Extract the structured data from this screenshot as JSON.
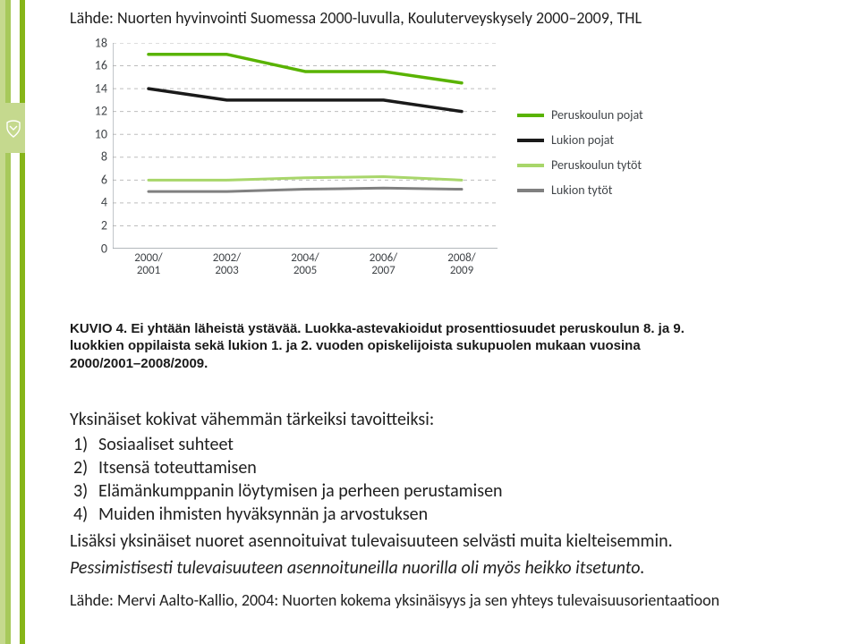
{
  "top_source": "Lähde: Nuorten hyvinvointi Suomessa 2000-luvulla, Kouluterveyskysely 2000–2009, THL",
  "chart": {
    "type": "line",
    "ylim": [
      0,
      18
    ],
    "ytick_step": 2,
    "x_categories": [
      "2000/\n2001",
      "2002/\n2003",
      "2004/\n2005",
      "2006/\n2007",
      "2008/\n2009"
    ],
    "grid_color": "#bdbdbd",
    "background_color": "#ffffff",
    "baseline_color": "#9aa0a6",
    "series": [
      {
        "name": "Peruskoulun pojat",
        "color": "#59b300",
        "width": 3.5,
        "values": [
          17,
          17,
          15.5,
          15.5,
          14.5
        ]
      },
      {
        "name": "Lukion pojat",
        "color": "#1a1a1a",
        "width": 3.5,
        "values": [
          14,
          13,
          13,
          13,
          12
        ]
      },
      {
        "name": "Peruskoulun tytöt",
        "color": "#a8d66a",
        "width": 3,
        "values": [
          6,
          6,
          6.2,
          6.3,
          6
        ]
      },
      {
        "name": "Lukion tytöt",
        "color": "#808080",
        "width": 3,
        "values": [
          5,
          5,
          5.2,
          5.3,
          5.2
        ]
      }
    ],
    "legend": [
      {
        "label": "Peruskoulun pojat",
        "color": "#59b300"
      },
      {
        "label": "Lukion pojat",
        "color": "#1a1a1a"
      },
      {
        "label": "Peruskoulun tytöt",
        "color": "#a8d66a"
      },
      {
        "label": "Lukion tytöt",
        "color": "#808080"
      }
    ],
    "tick_fontsize": 14,
    "label_fontsize": 13
  },
  "caption": "KUVIO 4. Ei yhtään läheistä ystävää. Luokka-astevakioidut prosenttiosuudet peruskoulun 8. ja 9. luokkien oppilaista sekä lukion 1. ja 2. vuoden opiskelijoista sukupuolen mukaan vuosina 2000/2001–2008/2009.",
  "body": {
    "lead": "Yksinäiset kokivat vähemmän tärkeiksi tavoitteiksi:",
    "items": [
      "Sosiaaliset suhteet",
      "Itsensä toteuttamisen",
      "Elämänkumppanin löytymisen ja perheen perustamisen",
      "Muiden ihmisten hyväksynnän ja arvostuksen"
    ],
    "after_1": "Lisäksi yksinäiset nuoret asennoituivat tulevaisuuteen selvästi muita kielteisemmin.",
    "after_2": "Pessimistisesti tulevaisuuteen asennoituneilla nuorilla oli myös heikko itsetunto"
  },
  "bottom_source": "Lähde: Mervi Aalto-Kallio, 2004: Nuorten kokema yksinäisyys ja sen yhteys tulevaisuusorientaatioon"
}
